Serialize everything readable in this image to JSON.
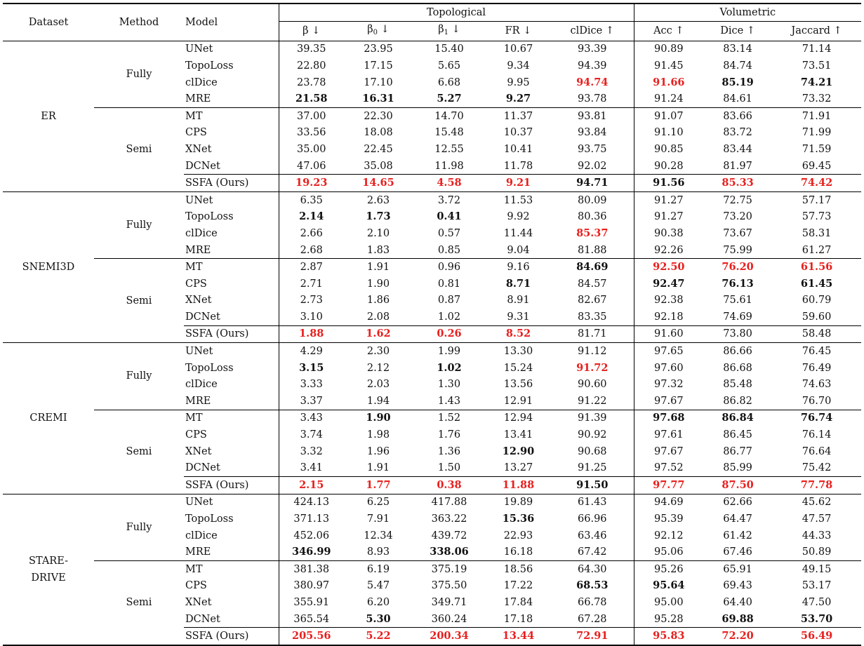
{
  "header": {
    "dataset": "Dataset",
    "method": "Method",
    "model": "Model",
    "topological": "Topological",
    "volumetric": "Volumetric",
    "metrics": [
      "β ↓",
      "β0 ↓",
      "β1 ↓",
      "FR ↓",
      "clDice ↑",
      "Acc ↑",
      "Dice ↑",
      "Jaccard ↑"
    ]
  },
  "datasets": [
    {
      "name": "ER",
      "groups": [
        {
          "method": "Fully",
          "rows": [
            {
              "model": "UNet",
              "values": [
                "39.35",
                "23.95",
                "15.40",
                "10.67",
                "93.39",
                "90.89",
                "83.14",
                "71.14"
              ],
              "style": [
                "",
                "",
                "",
                "",
                "",
                "",
                "",
                ""
              ]
            },
            {
              "model": "TopoLoss",
              "values": [
                "22.80",
                "17.15",
                "5.65",
                "9.34",
                "94.39",
                "91.45",
                "84.74",
                "73.51"
              ],
              "style": [
                "",
                "",
                "",
                "",
                "",
                "",
                "",
                ""
              ]
            },
            {
              "model": "clDice",
              "values": [
                "23.78",
                "17.10",
                "6.68",
                "9.95",
                "94.74",
                "91.66",
                "85.19",
                "74.21"
              ],
              "style": [
                "",
                "",
                "",
                "",
                "r",
                "r",
                "b",
                "b"
              ]
            },
            {
              "model": "MRE",
              "values": [
                "21.58",
                "16.31",
                "5.27",
                "9.27",
                "93.78",
                "91.24",
                "84.61",
                "73.32"
              ],
              "style": [
                "b",
                "b",
                "b",
                "b",
                "",
                "",
                "",
                ""
              ]
            }
          ]
        },
        {
          "method": "Semi",
          "rows": [
            {
              "model": "MT",
              "values": [
                "37.00",
                "22.30",
                "14.70",
                "11.37",
                "93.81",
                "91.07",
                "83.66",
                "71.91"
              ],
              "style": [
                "",
                "",
                "",
                "",
                "",
                "",
                "",
                ""
              ]
            },
            {
              "model": "CPS",
              "values": [
                "33.56",
                "18.08",
                "15.48",
                "10.37",
                "93.84",
                "91.10",
                "83.72",
                "71.99"
              ],
              "style": [
                "",
                "",
                "",
                "",
                "",
                "",
                "",
                ""
              ]
            },
            {
              "model": "XNet",
              "values": [
                "35.00",
                "22.45",
                "12.55",
                "10.41",
                "93.75",
                "90.85",
                "83.44",
                "71.59"
              ],
              "style": [
                "",
                "",
                "",
                "",
                "",
                "",
                "",
                ""
              ]
            },
            {
              "model": "DCNet",
              "values": [
                "47.06",
                "35.08",
                "11.98",
                "11.78",
                "92.02",
                "90.28",
                "81.97",
                "69.45"
              ],
              "style": [
                "",
                "",
                "",
                "",
                "",
                "",
                "",
                ""
              ]
            },
            {
              "model": "SSFA (Ours)",
              "values": [
                "19.23",
                "14.65",
                "4.58",
                "9.21",
                "94.71",
                "91.56",
                "85.33",
                "74.42"
              ],
              "style": [
                "r",
                "r",
                "r",
                "r",
                "b",
                "b",
                "r",
                "r"
              ]
            }
          ]
        }
      ]
    },
    {
      "name": "SNEMI3D",
      "groups": [
        {
          "method": "Fully",
          "rows": [
            {
              "model": "UNet",
              "values": [
                "6.35",
                "2.63",
                "3.72",
                "11.53",
                "80.09",
                "91.27",
                "72.75",
                "57.17"
              ],
              "style": [
                "",
                "",
                "",
                "",
                "",
                "",
                "",
                ""
              ]
            },
            {
              "model": "TopoLoss",
              "values": [
                "2.14",
                "1.73",
                "0.41",
                "9.92",
                "80.36",
                "91.27",
                "73.20",
                "57.73"
              ],
              "style": [
                "b",
                "b",
                "b",
                "",
                "",
                "",
                "",
                ""
              ]
            },
            {
              "model": "clDice",
              "values": [
                "2.66",
                "2.10",
                "0.57",
                "11.44",
                "85.37",
                "90.38",
                "73.67",
                "58.31"
              ],
              "style": [
                "",
                "",
                "",
                "",
                "r",
                "",
                "",
                ""
              ]
            },
            {
              "model": "MRE",
              "values": [
                "2.68",
                "1.83",
                "0.85",
                "9.04",
                "81.88",
                "92.26",
                "75.99",
                "61.27"
              ],
              "style": [
                "",
                "",
                "",
                "",
                "",
                "",
                "",
                ""
              ]
            }
          ]
        },
        {
          "method": "Semi",
          "rows": [
            {
              "model": "MT",
              "values": [
                "2.87",
                "1.91",
                "0.96",
                "9.16",
                "84.69",
                "92.50",
                "76.20",
                "61.56"
              ],
              "style": [
                "",
                "",
                "",
                "",
                "b",
                "r",
                "r",
                "r"
              ]
            },
            {
              "model": "CPS",
              "values": [
                "2.71",
                "1.90",
                "0.81",
                "8.71",
                "84.57",
                "92.47",
                "76.13",
                "61.45"
              ],
              "style": [
                "",
                "",
                "",
                "b",
                "",
                "b",
                "b",
                "b"
              ]
            },
            {
              "model": "XNet",
              "values": [
                "2.73",
                "1.86",
                "0.87",
                "8.91",
                "82.67",
                "92.38",
                "75.61",
                "60.79"
              ],
              "style": [
                "",
                "",
                "",
                "",
                "",
                "",
                "",
                ""
              ]
            },
            {
              "model": "DCNet",
              "values": [
                "3.10",
                "2.08",
                "1.02",
                "9.31",
                "83.35",
                "92.18",
                "74.69",
                "59.60"
              ],
              "style": [
                "",
                "",
                "",
                "",
                "",
                "",
                "",
                ""
              ]
            },
            {
              "model": "SSFA (Ours)",
              "values": [
                "1.88",
                "1.62",
                "0.26",
                "8.52",
                "81.71",
                "91.60",
                "73.80",
                "58.48"
              ],
              "style": [
                "r",
                "r",
                "r",
                "r",
                "",
                "",
                "",
                ""
              ]
            }
          ]
        }
      ]
    },
    {
      "name": "CREMI",
      "groups": [
        {
          "method": "Fully",
          "rows": [
            {
              "model": "UNet",
              "values": [
                "4.29",
                "2.30",
                "1.99",
                "13.30",
                "91.12",
                "97.65",
                "86.66",
                "76.45"
              ],
              "style": [
                "",
                "",
                "",
                "",
                "",
                "",
                "",
                ""
              ]
            },
            {
              "model": "TopoLoss",
              "values": [
                "3.15",
                "2.12",
                "1.02",
                "15.24",
                "91.72",
                "97.60",
                "86.68",
                "76.49"
              ],
              "style": [
                "b",
                "",
                "b",
                "",
                "r",
                "",
                "",
                ""
              ]
            },
            {
              "model": "clDice",
              "values": [
                "3.33",
                "2.03",
                "1.30",
                "13.56",
                "90.60",
                "97.32",
                "85.48",
                "74.63"
              ],
              "style": [
                "",
                "",
                "",
                "",
                "",
                "",
                "",
                ""
              ]
            },
            {
              "model": "MRE",
              "values": [
                "3.37",
                "1.94",
                "1.43",
                "12.91",
                "91.22",
                "97.67",
                "86.82",
                "76.70"
              ],
              "style": [
                "",
                "",
                "",
                "",
                "",
                "",
                "",
                ""
              ]
            }
          ]
        },
        {
          "method": "Semi",
          "rows": [
            {
              "model": "MT",
              "values": [
                "3.43",
                "1.90",
                "1.52",
                "12.94",
                "91.39",
                "97.68",
                "86.84",
                "76.74"
              ],
              "style": [
                "",
                "b",
                "",
                "",
                "",
                "b",
                "b",
                "b"
              ]
            },
            {
              "model": "CPS",
              "values": [
                "3.74",
                "1.98",
                "1.76",
                "13.41",
                "90.92",
                "97.61",
                "86.45",
                "76.14"
              ],
              "style": [
                "",
                "",
                "",
                "",
                "",
                "",
                "",
                ""
              ]
            },
            {
              "model": "XNet",
              "values": [
                "3.32",
                "1.96",
                "1.36",
                "12.90",
                "90.68",
                "97.67",
                "86.77",
                "76.64"
              ],
              "style": [
                "",
                "",
                "",
                "b",
                "",
                "",
                "",
                ""
              ]
            },
            {
              "model": "DCNet",
              "values": [
                "3.41",
                "1.91",
                "1.50",
                "13.27",
                "91.25",
                "97.52",
                "85.99",
                "75.42"
              ],
              "style": [
                "",
                "",
                "",
                "",
                "",
                "",
                "",
                ""
              ]
            },
            {
              "model": "SSFA (Ours)",
              "values": [
                "2.15",
                "1.77",
                "0.38",
                "11.88",
                "91.50",
                "97.77",
                "87.50",
                "77.78"
              ],
              "style": [
                "r",
                "r",
                "r",
                "r",
                "b",
                "r",
                "r",
                "r"
              ]
            }
          ]
        }
      ]
    },
    {
      "name": "STARE-\nDRIVE",
      "groups": [
        {
          "method": "Fully",
          "rows": [
            {
              "model": "UNet",
              "values": [
                "424.13",
                "6.25",
                "417.88",
                "19.89",
                "61.43",
                "94.69",
                "62.66",
                "45.62"
              ],
              "style": [
                "",
                "",
                "",
                "",
                "",
                "",
                "",
                ""
              ]
            },
            {
              "model": "TopoLoss",
              "values": [
                "371.13",
                "7.91",
                "363.22",
                "15.36",
                "66.96",
                "95.39",
                "64.47",
                "47.57"
              ],
              "style": [
                "",
                "",
                "",
                "b",
                "",
                "",
                "",
                ""
              ]
            },
            {
              "model": "clDice",
              "values": [
                "452.06",
                "12.34",
                "439.72",
                "22.93",
                "63.46",
                "92.12",
                "61.42",
                "44.33"
              ],
              "style": [
                "",
                "",
                "",
                "",
                "",
                "",
                "",
                ""
              ]
            },
            {
              "model": "MRE",
              "values": [
                "346.99",
                "8.93",
                "338.06",
                "16.18",
                "67.42",
                "95.06",
                "67.46",
                "50.89"
              ],
              "style": [
                "b",
                "",
                "b",
                "",
                "",
                "",
                "",
                ""
              ]
            }
          ]
        },
        {
          "method": "Semi",
          "rows": [
            {
              "model": "MT",
              "values": [
                "381.38",
                "6.19",
                "375.19",
                "18.56",
                "64.30",
                "95.26",
                "65.91",
                "49.15"
              ],
              "style": [
                "",
                "",
                "",
                "",
                "",
                "",
                "",
                ""
              ]
            },
            {
              "model": "CPS",
              "values": [
                "380.97",
                "5.47",
                "375.50",
                "17.22",
                "68.53",
                "95.64",
                "69.43",
                "53.17"
              ],
              "style": [
                "",
                "",
                "",
                "",
                "b",
                "b",
                "",
                ""
              ]
            },
            {
              "model": "XNet",
              "values": [
                "355.91",
                "6.20",
                "349.71",
                "17.84",
                "66.78",
                "95.00",
                "64.40",
                "47.50"
              ],
              "style": [
                "",
                "",
                "",
                "",
                "",
                "",
                "",
                ""
              ]
            },
            {
              "model": "DCNet",
              "values": [
                "365.54",
                "5.30",
                "360.24",
                "17.18",
                "67.28",
                "95.28",
                "69.88",
                "53.70"
              ],
              "style": [
                "",
                "b",
                "",
                "",
                "",
                "",
                "b",
                "b"
              ]
            },
            {
              "model": "SSFA (Ours)",
              "values": [
                "205.56",
                "5.22",
                "200.34",
                "13.44",
                "72.91",
                "95.83",
                "72.20",
                "56.49"
              ],
              "style": [
                "r",
                "r",
                "r",
                "r",
                "r",
                "r",
                "r",
                "r"
              ]
            }
          ]
        }
      ]
    }
  ]
}
